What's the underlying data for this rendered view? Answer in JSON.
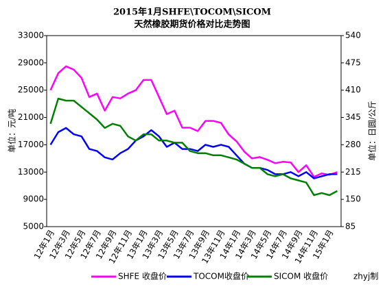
{
  "chart_data": {
    "type": "line",
    "title": "2015年1月SHFE\\TOCOM\\SICOM",
    "subtitle": "天然橡胶期货价格对比走势图",
    "y_label": "单位：元/吨",
    "y2_label": "单位：日圆/公斤",
    "credit": "zhyj制",
    "categories": [
      "12年1月",
      null,
      "12年3月",
      null,
      "12年5月",
      null,
      "12年7月",
      null,
      "12年9月",
      null,
      "12年11月",
      null,
      "13年1月",
      null,
      "13年3月",
      null,
      "13年5月",
      null,
      "13年7月",
      null,
      "13年9月",
      null,
      "13年11月",
      null,
      "14年1月",
      null,
      "14年3月",
      null,
      "14年5月",
      null,
      "14年7月",
      null,
      "14年9月",
      null,
      "14年11月",
      null,
      "15年1月",
      null
    ],
    "ylim": [
      5000,
      33000
    ],
    "yticks": [
      5000,
      9000,
      13000,
      17000,
      21000,
      25000,
      29000,
      33000
    ],
    "y2lim": [
      85,
      540
    ],
    "y2ticks": [
      85,
      150,
      215,
      280,
      345,
      410,
      475,
      540
    ],
    "grid": false,
    "series": [
      {
        "name": "SHFE 收盘价",
        "color": "#ff00ff",
        "values": [
          25000,
          27500,
          28500,
          28000,
          26800,
          24000,
          24500,
          22000,
          24000,
          23800,
          24500,
          25000,
          26500,
          26500,
          24000,
          21500,
          22000,
          19500,
          19500,
          19000,
          20500,
          20500,
          20200,
          18500,
          17500,
          16000,
          15000,
          15200,
          14800,
          14300,
          14500,
          14400,
          13000,
          14000,
          12300,
          12800,
          12600,
          13000
        ]
      },
      {
        "name": "TOCOM收盘价",
        "color": "#0000ff",
        "axis": "y2",
        "values": [
          280,
          310,
          320,
          305,
          300,
          270,
          265,
          250,
          245,
          260,
          270,
          290,
          300,
          315,
          300,
          275,
          285,
          270,
          270,
          265,
          280,
          275,
          280,
          275,
          255,
          235,
          225,
          225,
          220,
          210,
          210,
          215,
          205,
          215,
          200,
          205,
          210,
          210
        ]
      },
      {
        "name": "SICOM 收盘价",
        "color": "#008000",
        "axis": "y2",
        "values": [
          330,
          390,
          385,
          385,
          370,
          355,
          340,
          320,
          330,
          325,
          300,
          290,
          305,
          305,
          290,
          290,
          285,
          285,
          265,
          260,
          260,
          255,
          255,
          250,
          245,
          235,
          225,
          225,
          210,
          205,
          210,
          200,
          195,
          190,
          160,
          165,
          160,
          170
        ]
      }
    ]
  }
}
